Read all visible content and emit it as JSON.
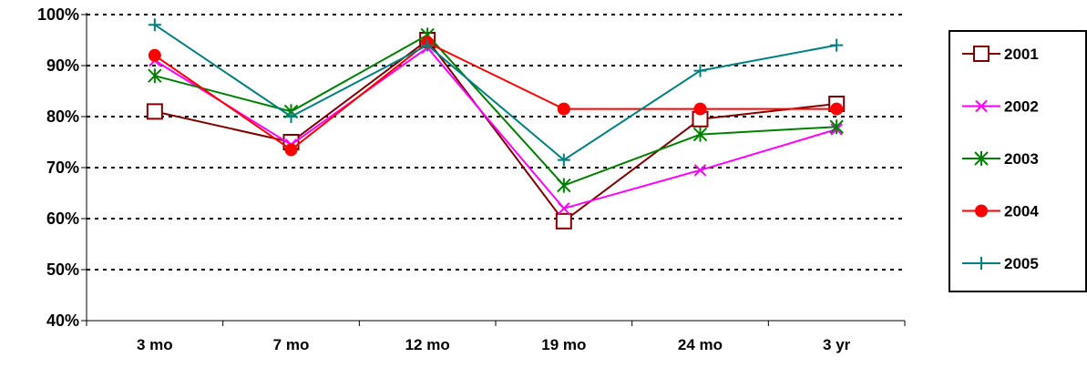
{
  "chart_data": {
    "type": "line",
    "title": "",
    "xlabel": "",
    "ylabel": "",
    "categories": [
      "3 mo",
      "7 mo",
      "12 mo",
      "19 mo",
      "24 mo",
      "3 yr"
    ],
    "y_ticks": [
      "40%",
      "50%",
      "60%",
      "70%",
      "80%",
      "90%",
      "100%"
    ],
    "ylim": [
      40,
      100
    ],
    "grid": "dashed horizontal",
    "legend_position": "right",
    "series": [
      {
        "name": "2001",
        "color": "#800000",
        "marker": "square-open",
        "values": [
          81,
          75,
          95,
          59.5,
          79.5,
          82.5
        ]
      },
      {
        "name": "2002",
        "color": "#ff00ff",
        "marker": "x",
        "values": [
          91,
          74.5,
          93.5,
          62,
          69.5,
          77.5
        ]
      },
      {
        "name": "2003",
        "color": "#008000",
        "marker": "asterisk",
        "values": [
          88,
          81,
          96,
          66.5,
          76.5,
          78
        ]
      },
      {
        "name": "2004",
        "color": "#ff0000",
        "marker": "circle-filled",
        "values": [
          92,
          73.5,
          94.5,
          81.5,
          81.5,
          81.5
        ]
      },
      {
        "name": "2005",
        "color": "#008080",
        "marker": "plus",
        "values": [
          98,
          80,
          94,
          71.5,
          89,
          94
        ]
      }
    ]
  }
}
